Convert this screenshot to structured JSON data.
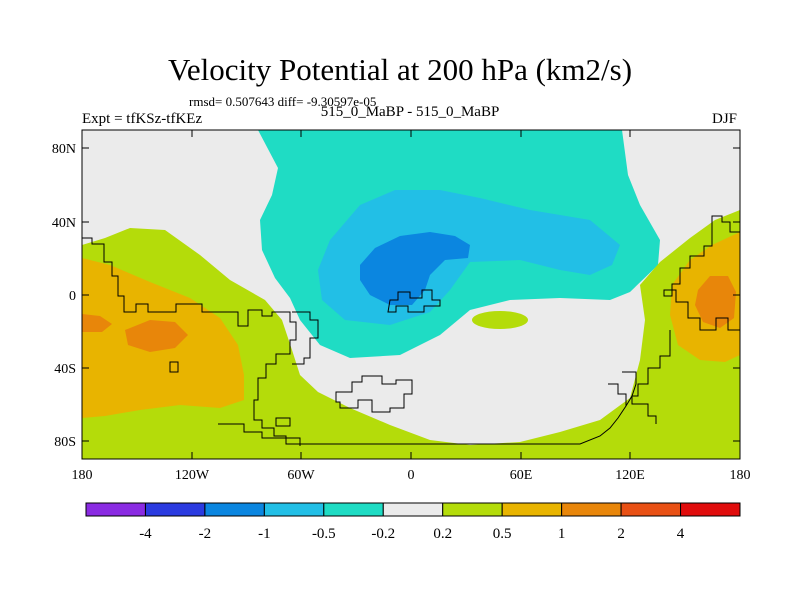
{
  "header": {
    "title": "Velocity Potential at 200 hPa (km2/s)",
    "stats": "rmsd= 0.507643 diff= -9.30597e-05",
    "experiment": "Expt = tfKSz-tfKEz",
    "subtitle": "515_0_MaBP - 515_0_MaBP",
    "season": "DJF"
  },
  "map": {
    "lat_ticks": [
      "80N",
      "40N",
      "0",
      "40S",
      "80S"
    ],
    "lon_ticks": [
      "180",
      "120W",
      "60W",
      "0",
      "60E",
      "120E",
      "180"
    ],
    "projection": "cylindrical equidistant",
    "lon_range": [
      -180,
      180
    ],
    "lat_range": [
      -90,
      90
    ]
  },
  "colorbar": {
    "colors": [
      "#8a2be2",
      "#2b3be0",
      "#0b86e0",
      "#22bfe6",
      "#1fdcc4",
      "#ebebeb",
      "#b4dc0a",
      "#e8b400",
      "#e8860a",
      "#e85014",
      "#e00c0c"
    ],
    "labels": [
      "-4",
      "-2",
      "-1",
      "-0.5",
      "-0.2",
      "0.2",
      "0.5",
      "1",
      "2",
      "4"
    ]
  }
}
